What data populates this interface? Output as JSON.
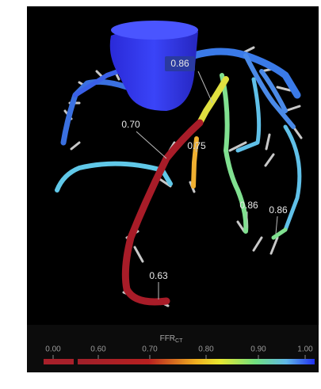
{
  "annotations": [
    "0.86",
    "0.70",
    "0.75",
    "0.86",
    "0.86",
    "0.63"
  ],
  "colorbar": {
    "title": "FFR",
    "title_subscript": "CT",
    "ticks": [
      "0.00",
      "0.60",
      "0.70",
      "0.80",
      "0.90",
      "1.00"
    ]
  }
}
